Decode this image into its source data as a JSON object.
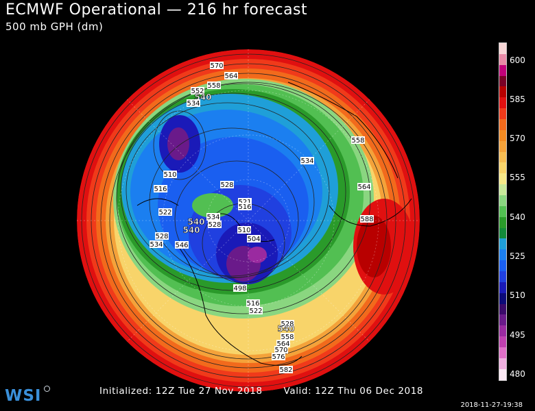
{
  "header": {
    "title": "ECMWF Operational — 216 hr forecast",
    "subtitle": "500 mb GPH (dm)"
  },
  "footer": {
    "initialized": "Initialized: 12Z Tue 27 Nov 2018",
    "valid": "Valid: 12Z Thu 06 Dec 2018",
    "timestamp": "2018-11-27-19:38",
    "logo_text": "WSI"
  },
  "colorbar": {
    "labels": [
      "600",
      "585",
      "570",
      "555",
      "540",
      "525",
      "510",
      "495",
      "480"
    ],
    "colors": [
      "#f7d6d6",
      "#e88aa6",
      "#c2007a",
      "#7a0026",
      "#b80000",
      "#e01010",
      "#f03a1a",
      "#f26a1c",
      "#f28a22",
      "#f4a23a",
      "#f6bc52",
      "#f8d46a",
      "#f6e888",
      "#c8e89a",
      "#8ad680",
      "#52bf52",
      "#2a9a2a",
      "#138a3a",
      "#1f9fd8",
      "#1b7ff0",
      "#1a5ff0",
      "#2040e0",
      "#1a1ab8",
      "#0c0a78",
      "#3a0a6a",
      "#6a1a8a",
      "#9a2aa0",
      "#c040b0",
      "#e070c8",
      "#f0b0e0",
      "#fbe8f4"
    ]
  },
  "map_labels": [
    {
      "text": "570"
    },
    {
      "text": "564"
    },
    {
      "text": "558"
    },
    {
      "text": "552"
    },
    {
      "text": "540",
      "bold": true
    },
    {
      "text": "534"
    },
    {
      "text": "510"
    },
    {
      "text": "516"
    },
    {
      "text": "522"
    },
    {
      "text": "528"
    },
    {
      "text": "534"
    },
    {
      "text": "540",
      "bold": true
    },
    {
      "text": "540",
      "bold": true
    },
    {
      "text": "546"
    },
    {
      "text": "528"
    },
    {
      "text": "534"
    },
    {
      "text": "528"
    },
    {
      "text": "521"
    },
    {
      "text": "516"
    },
    {
      "text": "510"
    },
    {
      "text": "504"
    },
    {
      "text": "498"
    },
    {
      "text": "516"
    },
    {
      "text": "522"
    },
    {
      "text": "534"
    },
    {
      "text": "558"
    },
    {
      "text": "564"
    },
    {
      "text": "588"
    },
    {
      "text": "528"
    },
    {
      "text": "540",
      "bold": true
    },
    {
      "text": "558"
    },
    {
      "text": "564"
    },
    {
      "text": "570"
    },
    {
      "text": "576"
    },
    {
      "text": "582"
    }
  ]
}
